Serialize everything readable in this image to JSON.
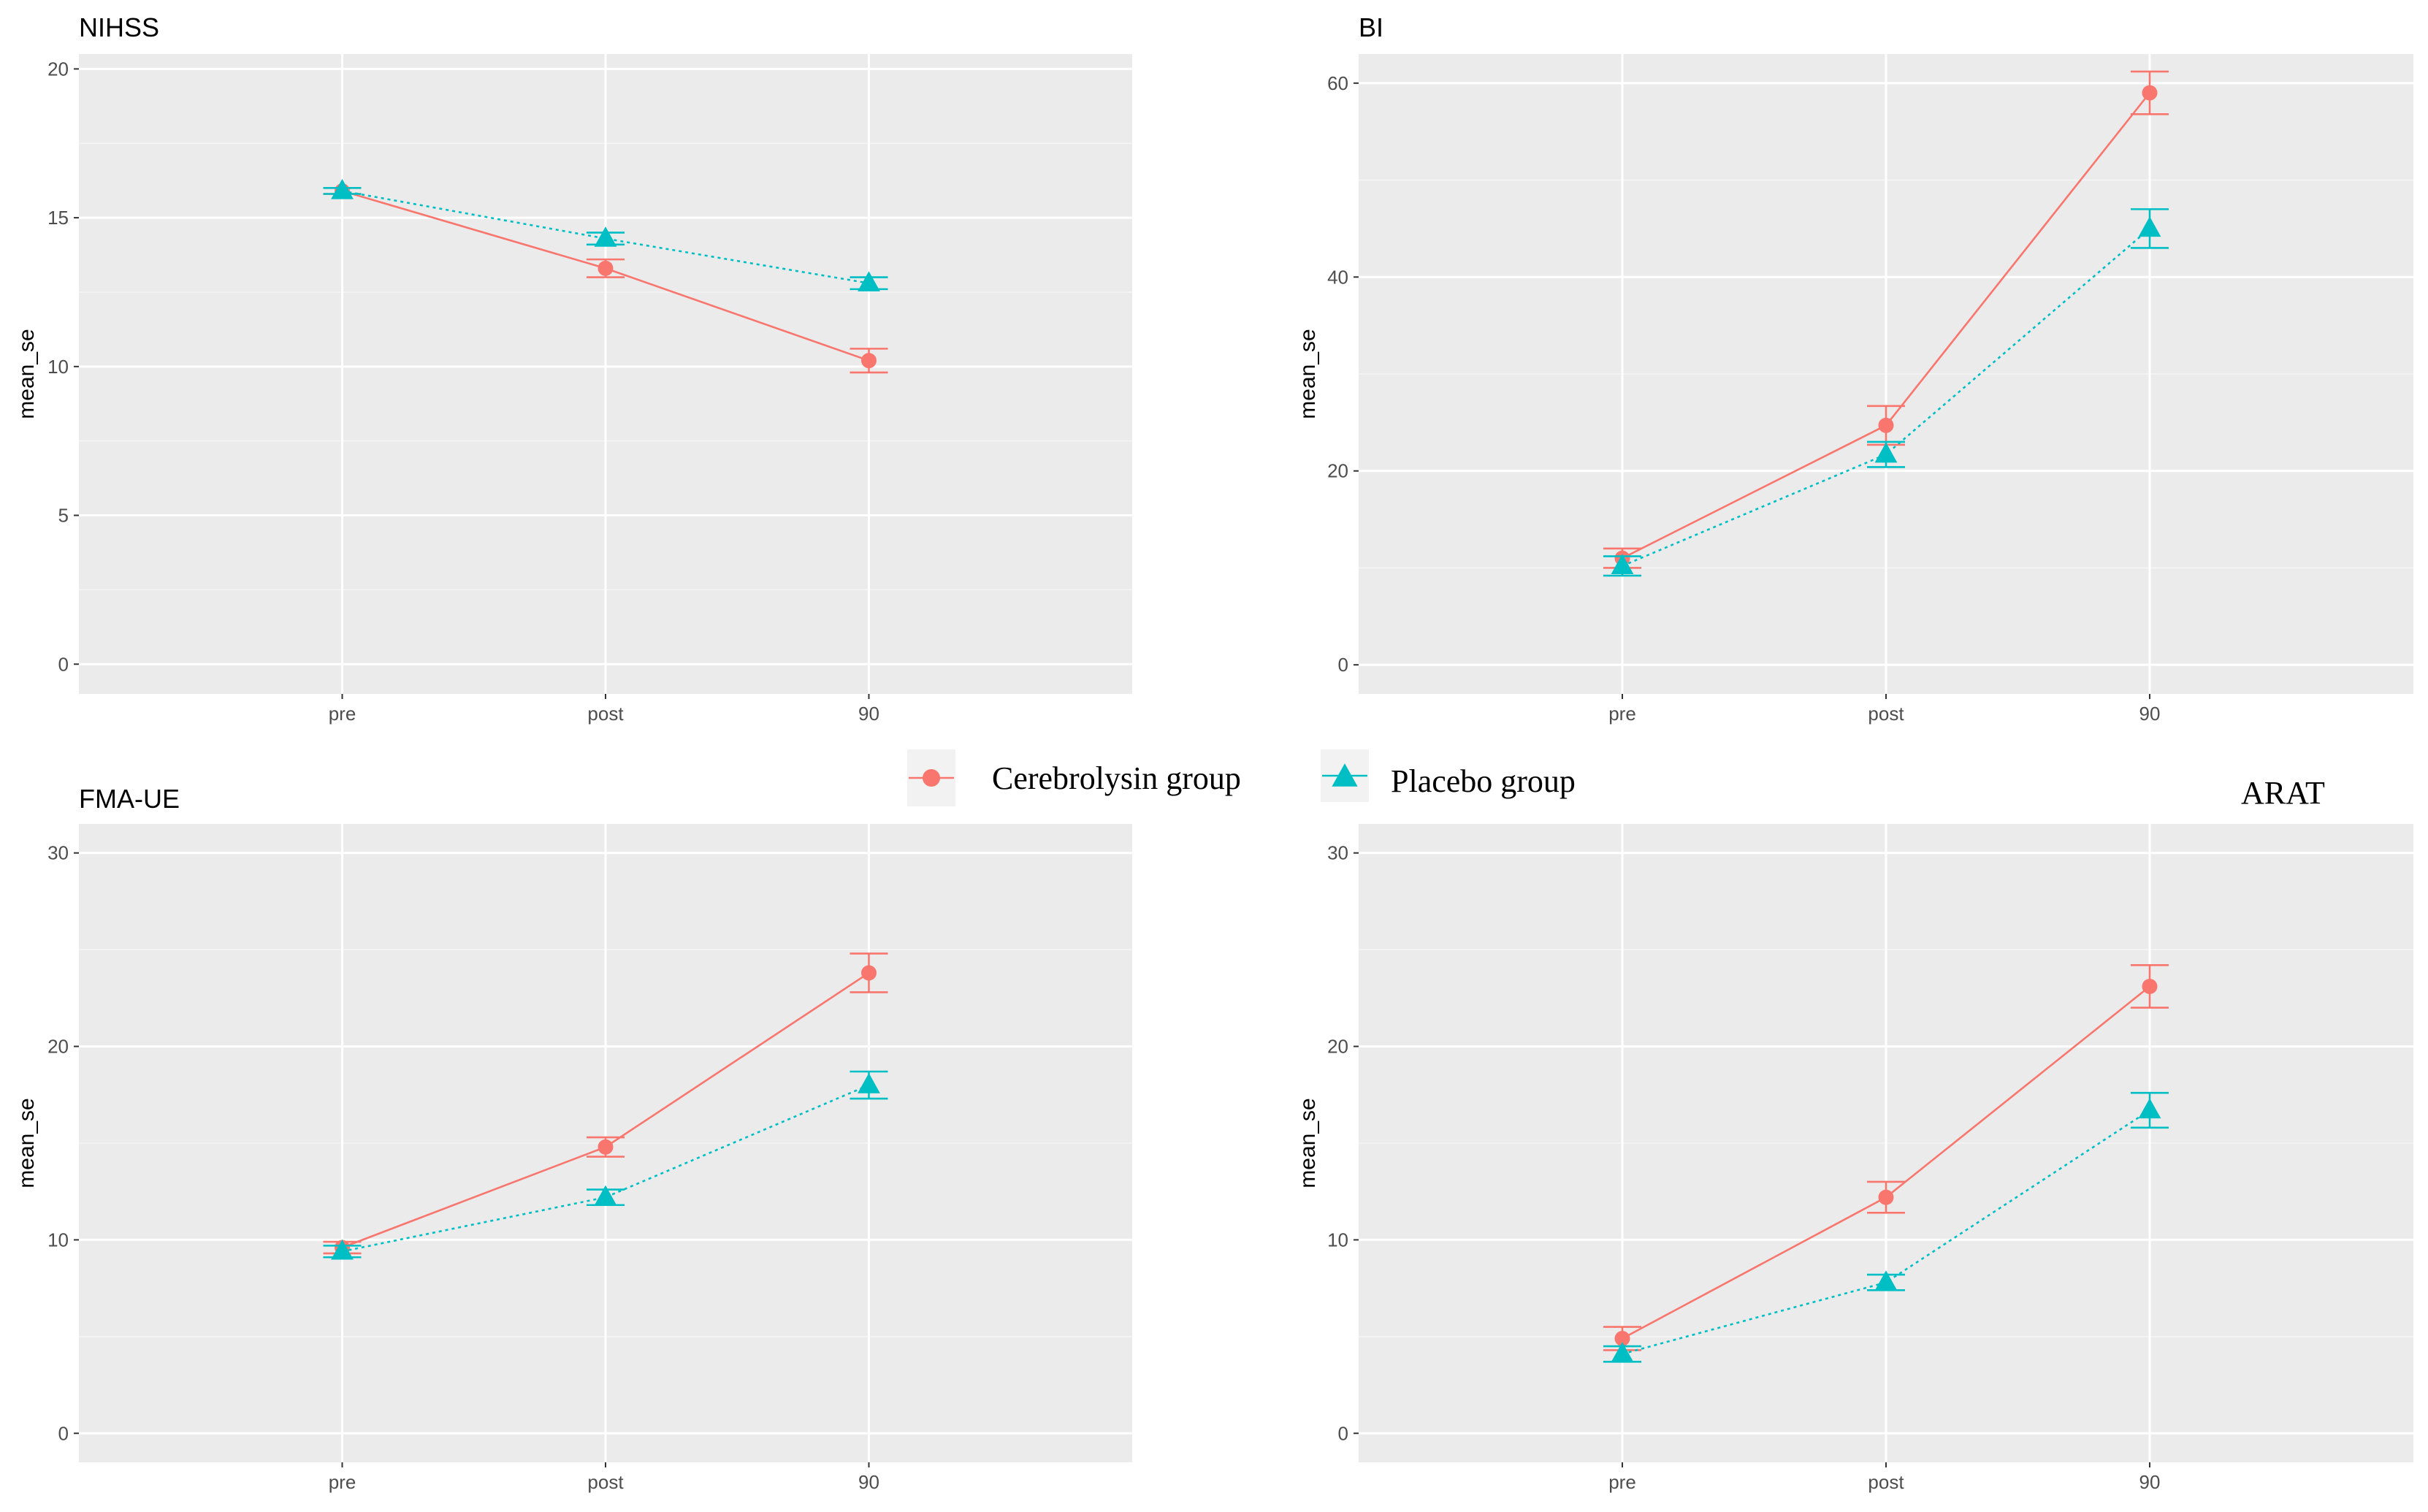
{
  "legend": {
    "entries": [
      {
        "label": "Cerebrolysin  group",
        "color": "#F8766D",
        "shape": "circle"
      },
      {
        "label": "Placebo  group",
        "color": "#00BFC4",
        "shape": "triangle"
      }
    ]
  },
  "chart_data": [
    {
      "type": "line",
      "title": "NIHSS",
      "categories": [
        "pre",
        "post",
        "90"
      ],
      "xlabel": "",
      "ylabel": "mean_se",
      "ylim": [
        -1.0,
        20.5
      ],
      "yticks": [
        0,
        5,
        10,
        15,
        20
      ],
      "series": [
        {
          "name": "Cerebrolysin group",
          "color": "#F8766D",
          "marker": "circle",
          "linestyle": "solid",
          "values": [
            15.9,
            13.3,
            10.2
          ],
          "se": [
            0.1,
            0.3,
            0.4
          ]
        },
        {
          "name": "Placebo group",
          "color": "#00BFC4",
          "marker": "triangle",
          "linestyle": "dotted",
          "values": [
            15.9,
            14.3,
            12.8
          ],
          "se": [
            0.1,
            0.2,
            0.2
          ]
        }
      ]
    },
    {
      "type": "line",
      "title": "BI",
      "categories": [
        "pre",
        "post",
        "90"
      ],
      "xlabel": "",
      "ylabel": "mean_se",
      "ylim": [
        -3.0,
        63.0
      ],
      "yticks": [
        0,
        20,
        40,
        60
      ],
      "series": [
        {
          "name": "Cerebrolysin group",
          "color": "#F8766D",
          "marker": "circle",
          "linestyle": "solid",
          "values": [
            11.0,
            24.7,
            59.0
          ],
          "se": [
            1.0,
            2.0,
            2.2
          ]
        },
        {
          "name": "Placebo group",
          "color": "#00BFC4",
          "marker": "triangle",
          "linestyle": "dotted",
          "values": [
            10.2,
            21.7,
            45.0
          ],
          "se": [
            1.0,
            1.3,
            2.0
          ]
        }
      ]
    },
    {
      "type": "line",
      "title": "FMA-UE",
      "categories": [
        "pre",
        "post",
        "90"
      ],
      "xlabel": "",
      "ylabel": "mean_se",
      "ylim": [
        -1.5,
        31.5
      ],
      "yticks": [
        0,
        10,
        20,
        30
      ],
      "series": [
        {
          "name": "Cerebrolysin group",
          "color": "#F8766D",
          "marker": "circle",
          "linestyle": "solid",
          "values": [
            9.6,
            14.8,
            23.8
          ],
          "se": [
            0.3,
            0.5,
            1.0
          ]
        },
        {
          "name": "Placebo group",
          "color": "#00BFC4",
          "marker": "triangle",
          "linestyle": "dotted",
          "values": [
            9.4,
            12.2,
            18.0
          ],
          "se": [
            0.3,
            0.4,
            0.7
          ]
        }
      ]
    },
    {
      "type": "line",
      "title": "ARAT",
      "categories": [
        "pre",
        "post",
        "90"
      ],
      "xlabel": "",
      "ylabel": "mean_se",
      "ylim": [
        -1.5,
        31.5
      ],
      "yticks": [
        0,
        10,
        20,
        30
      ],
      "series": [
        {
          "name": "Cerebrolysin group",
          "color": "#F8766D",
          "marker": "circle",
          "linestyle": "solid",
          "values": [
            4.9,
            12.2,
            23.1
          ],
          "se": [
            0.6,
            0.8,
            1.1
          ]
        },
        {
          "name": "Placebo group",
          "color": "#00BFC4",
          "marker": "triangle",
          "linestyle": "dotted",
          "values": [
            4.1,
            7.8,
            16.7
          ],
          "se": [
            0.4,
            0.4,
            0.9
          ]
        }
      ]
    }
  ]
}
